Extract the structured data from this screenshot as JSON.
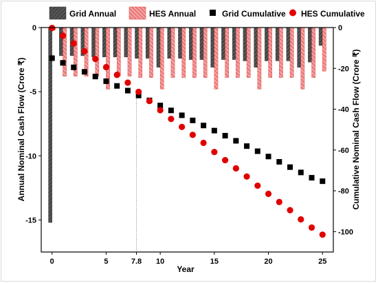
{
  "chart_data": {
    "type": "bar+scatter",
    "xlabel": "Year",
    "ylabel_left": "Annual Nominal Cash Flow (Crore ₹)",
    "ylabel_right": "Cumulative Nominal Cash Flow (Crore ₹)",
    "x_ticks": [
      "0",
      "5",
      "7.8",
      "10",
      "15",
      "20",
      "25"
    ],
    "x_tick_values": [
      0,
      5,
      7.8,
      10,
      15,
      20,
      25
    ],
    "y_left_ticks": [
      "0",
      "-5",
      "-10",
      "-15"
    ],
    "y_left_tick_values": [
      0,
      -5,
      -10,
      -15
    ],
    "y_left_range": [
      -17.5,
      0
    ],
    "y_right_ticks": [
      "0",
      "-20",
      "-40",
      "-60",
      "-80",
      "-100"
    ],
    "y_right_tick_values": [
      0,
      -20,
      -40,
      -60,
      -80,
      -100
    ],
    "y_right_range": [
      -110,
      0
    ],
    "x_range": [
      -1,
      26
    ],
    "marker_line_x": 7.8,
    "legend_position": "top",
    "series": [
      {
        "name": "Grid Annual",
        "kind": "bar",
        "axis": "left",
        "color": "#555555",
        "x": [
          0,
          1,
          2,
          3,
          4,
          5,
          6,
          7,
          8,
          9,
          10,
          11,
          12,
          13,
          14,
          15,
          16,
          17,
          18,
          19,
          20,
          21,
          22,
          23,
          24,
          25
        ],
        "values": [
          -15.2,
          -2.2,
          -2.2,
          -2.2,
          -2.3,
          -2.3,
          -2.3,
          -2.3,
          -2.4,
          -2.4,
          -3.1,
          -2.4,
          -2.4,
          -2.5,
          -2.5,
          -3.1,
          -2.5,
          -2.5,
          -2.6,
          -3.1,
          -2.6,
          -2.6,
          -2.6,
          -3.1,
          -2.7,
          -1.4
        ]
      },
      {
        "name": "HES Annual",
        "kind": "bar",
        "axis": "left",
        "color": "#e85a5a",
        "x": [
          0,
          1,
          2,
          3,
          4,
          5,
          6,
          7,
          8,
          9,
          10,
          11,
          12,
          13,
          14,
          15,
          16,
          17,
          18,
          19,
          20,
          21,
          22,
          23,
          24,
          25
        ],
        "values": [
          -0.2,
          -3.8,
          -3.8,
          -3.8,
          -3.8,
          -4.8,
          -3.8,
          -3.8,
          -3.9,
          -3.9,
          -4.8,
          -3.9,
          -3.9,
          -3.9,
          -3.9,
          -4.8,
          -3.9,
          -3.9,
          -3.9,
          -4.8,
          -3.9,
          -3.9,
          -3.9,
          -4.8,
          -3.9,
          -3.4
        ]
      },
      {
        "name": "Grid Cumulative",
        "kind": "scatter",
        "marker": "square",
        "axis": "right",
        "color": "#000000",
        "x": [
          0,
          1,
          2,
          3,
          4,
          5,
          6,
          7,
          8,
          9,
          10,
          11,
          12,
          13,
          14,
          15,
          16,
          17,
          18,
          19,
          20,
          21,
          22,
          23,
          24,
          25
        ],
        "values": [
          -15,
          -17.3,
          -19.5,
          -21.7,
          -24,
          -26.3,
          -28.6,
          -30.9,
          -33.3,
          -35.7,
          -38.2,
          -40.6,
          -43,
          -45.5,
          -48,
          -50.5,
          -53,
          -55.5,
          -58.1,
          -60.6,
          -63.2,
          -65.8,
          -68.4,
          -71,
          -73.6,
          -75.3
        ]
      },
      {
        "name": "HES Cumulative",
        "kind": "scatter",
        "marker": "circle",
        "axis": "right",
        "color": "#e00000",
        "x": [
          0,
          1,
          2,
          3,
          4,
          5,
          6,
          7,
          8,
          9,
          10,
          11,
          12,
          13,
          14,
          15,
          16,
          17,
          18,
          19,
          20,
          21,
          22,
          23,
          24,
          25
        ],
        "values": [
          -0.2,
          -4,
          -7.8,
          -11.6,
          -15.4,
          -19.4,
          -23.2,
          -27,
          -31.5,
          -36,
          -40.5,
          -44.8,
          -48.7,
          -52.6,
          -56.5,
          -61,
          -65,
          -69,
          -73,
          -77.5,
          -81.5,
          -85.5,
          -89.5,
          -94,
          -98,
          -101.5
        ]
      }
    ]
  }
}
